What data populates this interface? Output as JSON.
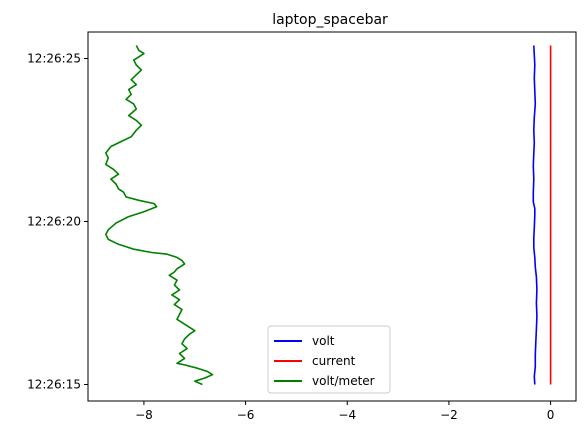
{
  "chart_data": {
    "type": "line",
    "title": "laptop_spacebar",
    "xlabel": "",
    "ylabel": "",
    "orientation": "series plotted with value on x and time on y",
    "xlim": [
      -9.1,
      0.5
    ],
    "ylim": [
      0,
      10.4
    ],
    "x_ticks": [
      {
        "value": -8,
        "label": "−8"
      },
      {
        "value": -6,
        "label": "−6"
      },
      {
        "value": -4,
        "label": "−4"
      },
      {
        "value": -2,
        "label": "−2"
      },
      {
        "value": 0,
        "label": "0"
      }
    ],
    "y_ticks": [
      {
        "value": 0,
        "label": "12:26:15"
      },
      {
        "value": 5,
        "label": "12:26:20"
      },
      {
        "value": 10,
        "label": "12:26:25"
      }
    ],
    "legend": {
      "position": "lower center",
      "entries": [
        "volt",
        "current",
        "volt/meter"
      ]
    },
    "grid": false,
    "series": [
      {
        "name": "volt",
        "color": "#0000ff",
        "points": [
          [
            -0.31,
            0.0
          ],
          [
            -0.32,
            0.25
          ],
          [
            -0.3,
            0.55
          ],
          [
            -0.3,
            0.9
          ],
          [
            -0.29,
            1.3
          ],
          [
            -0.28,
            1.7
          ],
          [
            -0.27,
            2.1
          ],
          [
            -0.28,
            2.5
          ],
          [
            -0.27,
            2.9
          ],
          [
            -0.28,
            3.3
          ],
          [
            -0.3,
            3.6
          ],
          [
            -0.31,
            3.9
          ],
          [
            -0.33,
            4.2
          ],
          [
            -0.33,
            4.5
          ],
          [
            -0.32,
            4.8
          ],
          [
            -0.31,
            5.2
          ],
          [
            -0.31,
            5.4
          ],
          [
            -0.34,
            5.6
          ],
          [
            -0.34,
            5.9
          ],
          [
            -0.33,
            6.3
          ],
          [
            -0.34,
            6.7
          ],
          [
            -0.33,
            7.1
          ],
          [
            -0.32,
            7.4
          ],
          [
            -0.33,
            7.8
          ],
          [
            -0.32,
            8.2
          ],
          [
            -0.3,
            8.6
          ],
          [
            -0.31,
            9.0
          ],
          [
            -0.32,
            9.4
          ],
          [
            -0.31,
            9.8
          ],
          [
            -0.32,
            10.1
          ],
          [
            -0.33,
            10.4
          ]
        ]
      },
      {
        "name": "current",
        "color": "#ff0000",
        "points": [
          [
            0.0,
            0.0
          ],
          [
            0.0,
            10.4
          ]
        ]
      },
      {
        "name": "volt/meter",
        "color": "#008000",
        "points": [
          [
            -6.85,
            0.0
          ],
          [
            -7.0,
            0.1
          ],
          [
            -6.8,
            0.2
          ],
          [
            -6.65,
            0.3
          ],
          [
            -6.75,
            0.4
          ],
          [
            -6.95,
            0.5
          ],
          [
            -7.2,
            0.6
          ],
          [
            -7.35,
            0.65
          ],
          [
            -7.2,
            0.8
          ],
          [
            -7.3,
            0.95
          ],
          [
            -7.15,
            1.1
          ],
          [
            -7.25,
            1.25
          ],
          [
            -7.2,
            1.4
          ],
          [
            -7.1,
            1.55
          ],
          [
            -7.0,
            1.65
          ],
          [
            -7.1,
            1.75
          ],
          [
            -7.2,
            1.85
          ],
          [
            -7.35,
            2.0
          ],
          [
            -7.3,
            2.15
          ],
          [
            -7.25,
            2.3
          ],
          [
            -7.4,
            2.45
          ],
          [
            -7.3,
            2.6
          ],
          [
            -7.45,
            2.75
          ],
          [
            -7.3,
            2.9
          ],
          [
            -7.4,
            3.05
          ],
          [
            -7.35,
            3.2
          ],
          [
            -7.5,
            3.35
          ],
          [
            -7.4,
            3.45
          ],
          [
            -7.35,
            3.55
          ],
          [
            -7.2,
            3.7
          ],
          [
            -7.25,
            3.8
          ],
          [
            -7.35,
            3.9
          ],
          [
            -7.55,
            4.0
          ],
          [
            -7.85,
            4.05
          ],
          [
            -8.2,
            4.15
          ],
          [
            -8.5,
            4.3
          ],
          [
            -8.7,
            4.45
          ],
          [
            -8.75,
            4.6
          ],
          [
            -8.7,
            4.75
          ],
          [
            -8.55,
            4.95
          ],
          [
            -8.3,
            5.15
          ],
          [
            -8.0,
            5.3
          ],
          [
            -7.75,
            5.45
          ],
          [
            -7.8,
            5.55
          ],
          [
            -8.1,
            5.65
          ],
          [
            -8.35,
            5.75
          ],
          [
            -8.4,
            5.9
          ],
          [
            -8.5,
            6.0
          ],
          [
            -8.55,
            6.15
          ],
          [
            -8.65,
            6.3
          ],
          [
            -8.5,
            6.45
          ],
          [
            -8.6,
            6.6
          ],
          [
            -8.75,
            6.75
          ],
          [
            -8.7,
            6.95
          ],
          [
            -8.75,
            7.1
          ],
          [
            -8.65,
            7.3
          ],
          [
            -8.45,
            7.45
          ],
          [
            -8.25,
            7.6
          ],
          [
            -8.15,
            7.8
          ],
          [
            -8.05,
            7.95
          ],
          [
            -8.15,
            8.1
          ],
          [
            -8.3,
            8.25
          ],
          [
            -8.15,
            8.45
          ],
          [
            -8.2,
            8.6
          ],
          [
            -8.35,
            8.75
          ],
          [
            -8.25,
            8.9
          ],
          [
            -8.3,
            9.05
          ],
          [
            -8.15,
            9.2
          ],
          [
            -8.25,
            9.35
          ],
          [
            -8.15,
            9.5
          ],
          [
            -8.05,
            9.65
          ],
          [
            -8.15,
            9.8
          ],
          [
            -8.2,
            9.95
          ],
          [
            -8.1,
            10.05
          ],
          [
            -8.0,
            10.15
          ],
          [
            -8.1,
            10.25
          ],
          [
            -8.15,
            10.4
          ]
        ]
      }
    ]
  }
}
